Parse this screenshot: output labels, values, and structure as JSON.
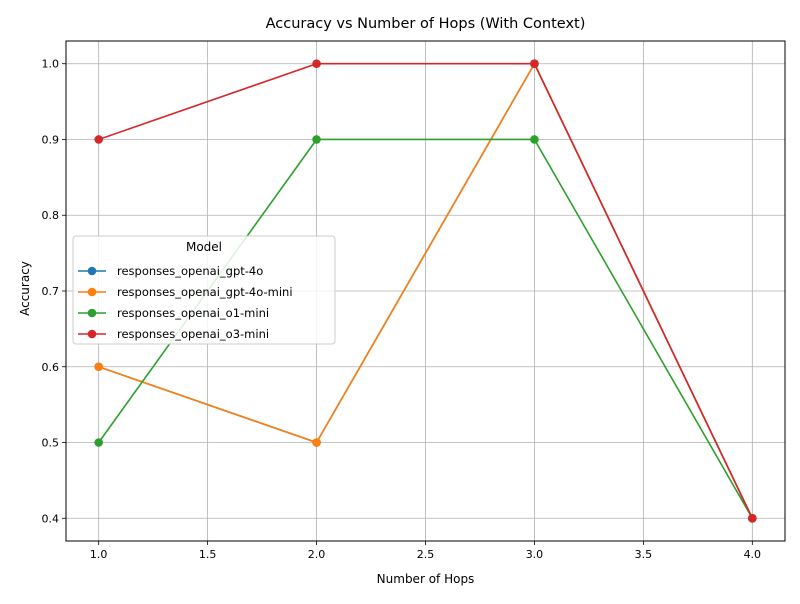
{
  "chart_data": {
    "type": "line",
    "title": "Accuracy vs Number of Hops (With Context)",
    "xlabel": "Number of Hops",
    "ylabel": "Accuracy",
    "xlim": [
      0.85,
      4.15
    ],
    "ylim": [
      0.37,
      1.03
    ],
    "xticks": [
      1.0,
      1.5,
      2.0,
      2.5,
      3.0,
      3.5,
      4.0
    ],
    "yticks": [
      0.4,
      0.5,
      0.6,
      0.7,
      0.8,
      0.9,
      1.0
    ],
    "grid": true,
    "legend": {
      "title": "Model",
      "placement": "center-left"
    },
    "x": [
      1.0,
      2.0,
      3.0,
      4.0
    ],
    "series": [
      {
        "name": "responses_openai_gpt-4o",
        "color": "#1f77b4",
        "values": [
          0.6,
          0.5,
          1.0,
          0.4
        ]
      },
      {
        "name": "responses_openai_gpt-4o-mini",
        "color": "#ff7f0e",
        "values": [
          0.6,
          0.5,
          1.0,
          0.4
        ]
      },
      {
        "name": "responses_openai_o1-mini",
        "color": "#2ca02c",
        "values": [
          0.5,
          0.9,
          0.9,
          0.4
        ]
      },
      {
        "name": "responses_openai_o3-mini",
        "color": "#d62728",
        "values": [
          0.9,
          1.0,
          1.0,
          0.4
        ]
      }
    ]
  }
}
